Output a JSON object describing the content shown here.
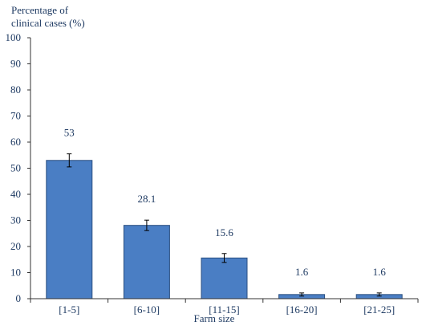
{
  "chart_data": {
    "type": "bar",
    "title": "",
    "ylabel": "Percentage of clinical cases (%)",
    "ylabel_lines": [
      "Percentage of",
      "clinical cases (%)"
    ],
    "xlabel": "Farm size",
    "categories": [
      "[1-5]",
      "[6-10]",
      "[11-15]",
      "[16-20]",
      "[21-25]"
    ],
    "values": [
      53,
      28.1,
      15.6,
      1.6,
      1.6
    ],
    "value_labels": [
      "53",
      "28.1",
      "15.6",
      "1.6",
      "1.6"
    ],
    "error": [
      2.5,
      2.0,
      1.7,
      0.6,
      0.6
    ],
    "ylim": [
      0,
      100
    ],
    "yticks": [
      0,
      10,
      20,
      30,
      40,
      50,
      60,
      70,
      80,
      90,
      100
    ],
    "ytick_labels": [
      "0",
      "10",
      "20",
      "30",
      "40",
      "50",
      "60",
      "70",
      "80",
      "90",
      "100"
    ],
    "grid": false,
    "legend": "none",
    "colors": {
      "bar_fill": "#4a7ec4",
      "bar_stroke": "#2b4f80",
      "axis": "#333333",
      "text": "#1f3b63"
    }
  }
}
